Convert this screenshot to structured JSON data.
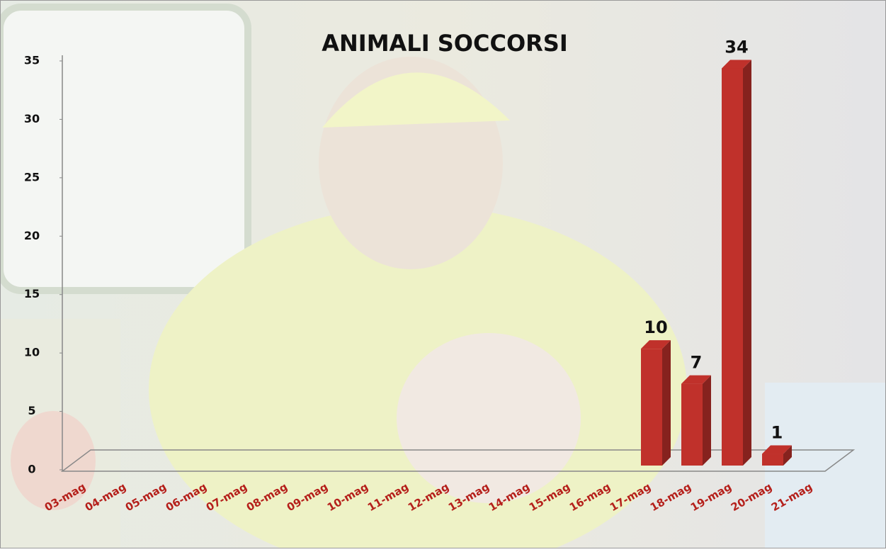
{
  "chart_data": {
    "type": "bar3d",
    "title": "ANIMALI SOCCORSI",
    "categories": [
      "03-mag",
      "04-mag",
      "05-mag",
      "06-mag",
      "07-mag",
      "08-mag",
      "09-mag",
      "10-mag",
      "11-mag",
      "12-mag",
      "13-mag",
      "14-mag",
      "15-mag",
      "16-mag",
      "17-mag",
      "18-mag",
      "19-mag",
      "20-mag",
      "21-mag"
    ],
    "values": [
      null,
      null,
      null,
      null,
      null,
      null,
      null,
      null,
      null,
      null,
      null,
      null,
      null,
      null,
      10,
      7,
      34,
      1,
      null
    ],
    "color": "#c0312b",
    "ylim": [
      0,
      35
    ],
    "yticks": [
      0,
      5,
      10,
      15,
      20,
      25,
      30,
      35
    ]
  }
}
